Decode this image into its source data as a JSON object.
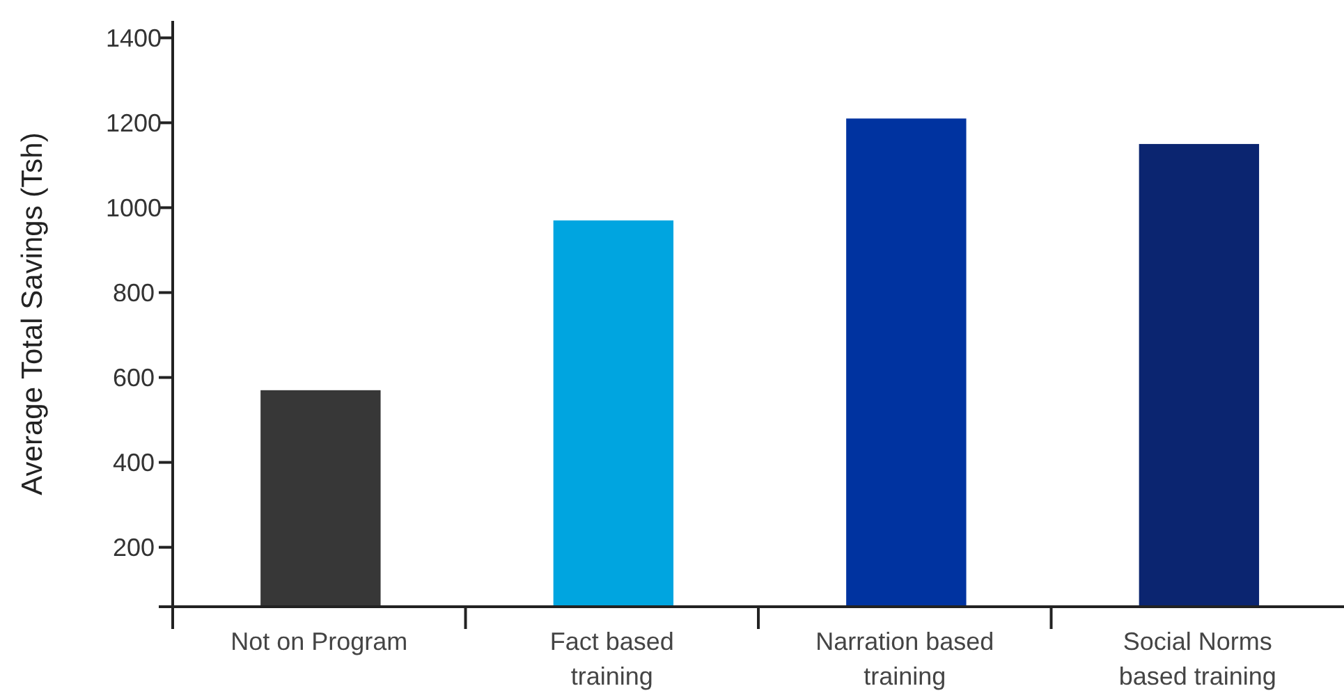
{
  "chart_data": {
    "type": "bar",
    "ylabel": "Average Total Savings (Tsh)",
    "categories": [
      "Not on Program",
      "Fact based training",
      "Narration based training",
      "Social Norms based training"
    ],
    "values": [
      570,
      970,
      1210,
      1150
    ],
    "colors": [
      "#373737",
      "#00a5e0",
      "#0033a0",
      "#0b2570"
    ],
    "ylim": [
      60,
      1440
    ],
    "yticks": [
      200,
      400,
      600,
      800,
      1000,
      1200,
      1400
    ],
    "grid": false
  }
}
